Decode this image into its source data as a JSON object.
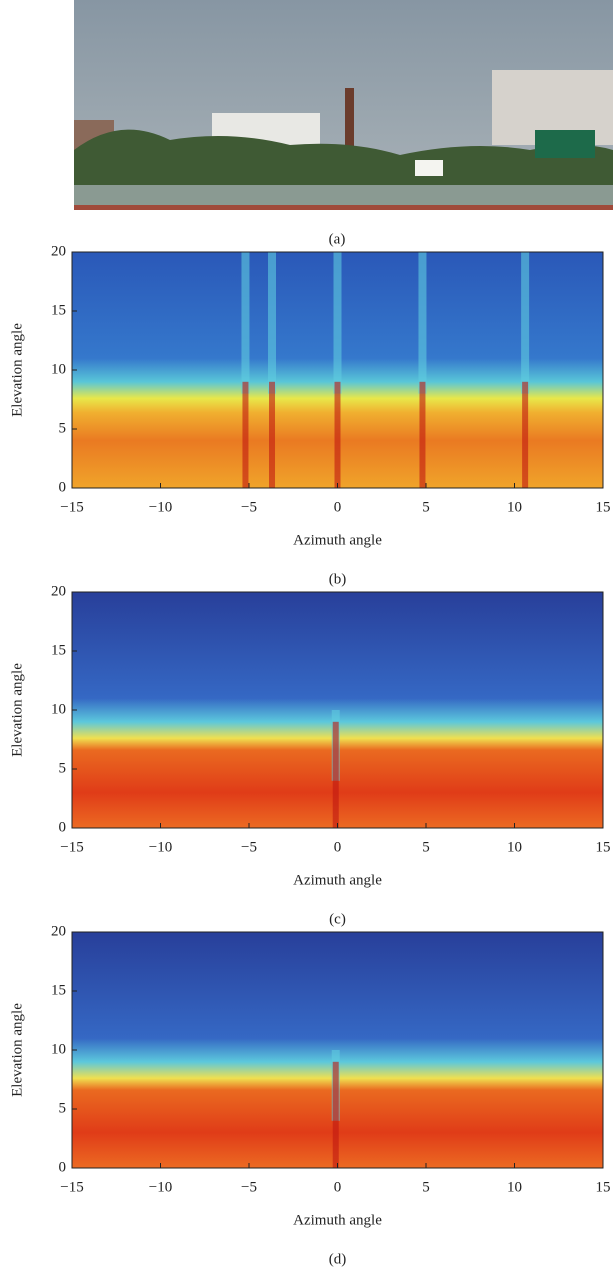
{
  "photo": {
    "caption": "(a)"
  },
  "chart_data": [
    {
      "type": "heatmap",
      "caption": "(b)",
      "xlabel": "Azimuth angle",
      "ylabel": "Elevation angle",
      "xlim": [
        -15,
        15
      ],
      "ylim": [
        0,
        20
      ],
      "xticks": [
        {
          "value": -15,
          "label": "−15"
        },
        {
          "value": -10,
          "label": "−10"
        },
        {
          "value": -5,
          "label": "−5"
        },
        0,
        5,
        10,
        15
      ],
      "yticks": [
        0,
        5,
        10,
        15,
        20
      ]
    },
    {
      "type": "heatmap",
      "caption": "(c)",
      "xlabel": "Azimuth angle",
      "ylabel": "Elevation angle",
      "xlim": [
        -15,
        15
      ],
      "ylim": [
        0,
        20
      ],
      "xticks": [
        {
          "value": -15,
          "label": "−15"
        },
        {
          "value": -10,
          "label": "−10"
        },
        {
          "value": -5,
          "label": "−5"
        },
        0,
        5,
        10,
        15
      ],
      "yticks": [
        0,
        5,
        10,
        15,
        20
      ]
    },
    {
      "type": "heatmap",
      "caption": "(d)",
      "xlabel": "Azimuth angle",
      "ylabel": "Elevation angle",
      "xlim": [
        -15,
        15
      ],
      "ylim": [
        0,
        20
      ],
      "xticks": [
        {
          "value": -15,
          "label": "−15"
        },
        {
          "value": -10,
          "label": "−10"
        },
        {
          "value": -5,
          "label": "−5"
        },
        0,
        5,
        10,
        15
      ],
      "yticks": [
        0,
        5,
        10,
        15,
        20
      ]
    }
  ]
}
